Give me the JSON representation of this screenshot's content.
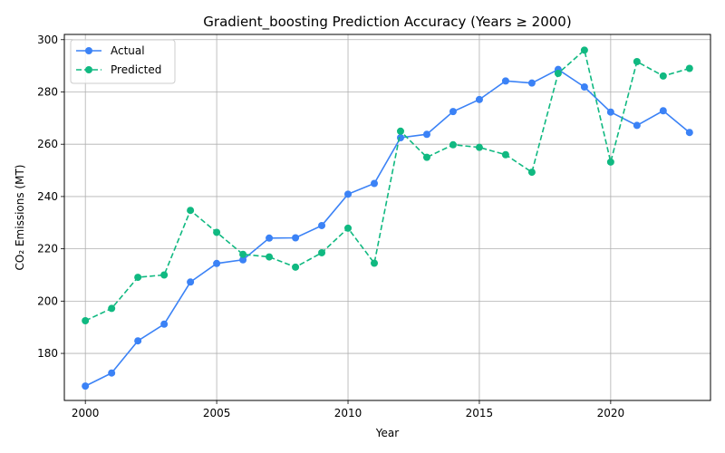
{
  "chart_data": {
    "type": "line",
    "title": "Gradient_boosting Prediction Accuracy (Years ≥ 2000)",
    "xlabel": "Year",
    "ylabel": "CO₂ Emissions (MT)",
    "xlim": [
      1999.2,
      2023.8
    ],
    "ylim": [
      162,
      302
    ],
    "xticks": [
      2000,
      2005,
      2010,
      2015,
      2020
    ],
    "yticks": [
      180,
      200,
      220,
      240,
      260,
      280,
      300
    ],
    "grid": true,
    "legend_position": "upper-left",
    "x": [
      2000,
      2001,
      2002,
      2003,
      2004,
      2005,
      2006,
      2007,
      2008,
      2009,
      2010,
      2011,
      2012,
      2013,
      2014,
      2015,
      2016,
      2017,
      2018,
      2019,
      2020,
      2021,
      2022,
      2023
    ],
    "series": [
      {
        "name": "Actual",
        "color": "#3b82f6",
        "linestyle": "solid",
        "marker": "circle",
        "values": [
          167.5,
          172.5,
          184.8,
          191.2,
          207.3,
          214.4,
          215.8,
          224.1,
          224.2,
          228.9,
          240.9,
          245.0,
          262.5,
          263.8,
          272.5,
          277.1,
          284.2,
          283.4,
          288.6,
          281.9,
          272.3,
          267.2,
          272.8,
          264.5
        ]
      },
      {
        "name": "Predicted",
        "color": "#10b981",
        "linestyle": "dashed",
        "marker": "circle",
        "values": [
          192.5,
          197.2,
          209.1,
          210.0,
          234.7,
          226.3,
          217.9,
          216.9,
          213.0,
          218.5,
          227.9,
          214.5,
          265.0,
          255.0,
          259.8,
          258.8,
          256.0,
          249.3,
          287.1,
          296.0,
          253.2,
          291.6,
          286.1,
          289.0
        ]
      }
    ]
  }
}
